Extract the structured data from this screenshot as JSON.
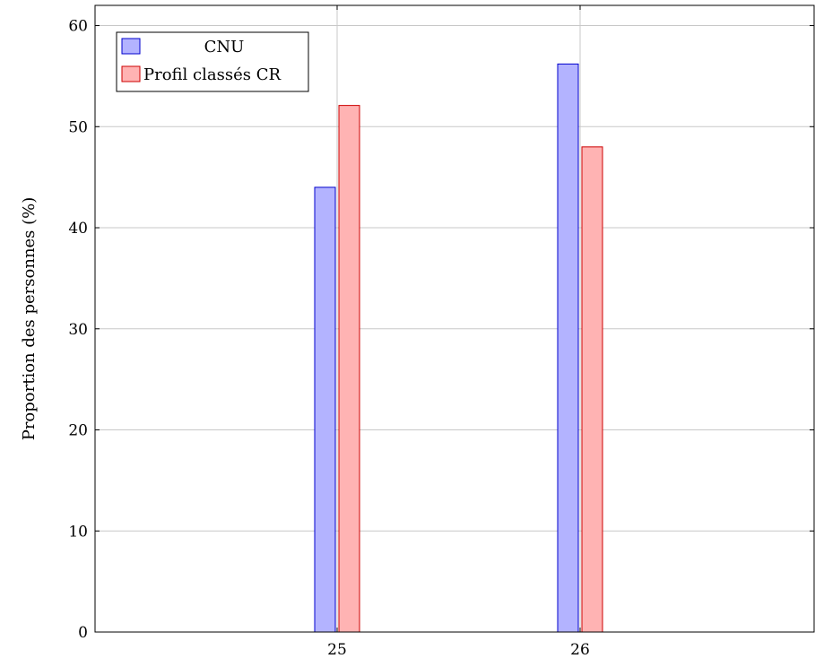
{
  "chart_data": {
    "type": "bar",
    "categories": [
      "25",
      "26"
    ],
    "series": [
      {
        "name": "CNU",
        "values": [
          44,
          56.2
        ],
        "fill": "#b3b3ff",
        "stroke": "#0000cc"
      },
      {
        "name": "Profil classés CR",
        "values": [
          52.1,
          48
        ],
        "fill": "#ffb3b3",
        "stroke": "#cc0000"
      }
    ],
    "xlabel": "",
    "ylabel": "Proportion des personnes (%)",
    "ylim": [
      0,
      62
    ],
    "yticks": [
      0,
      10,
      20,
      30,
      40,
      50,
      60
    ],
    "grid": true,
    "legend_position": "top-left"
  }
}
